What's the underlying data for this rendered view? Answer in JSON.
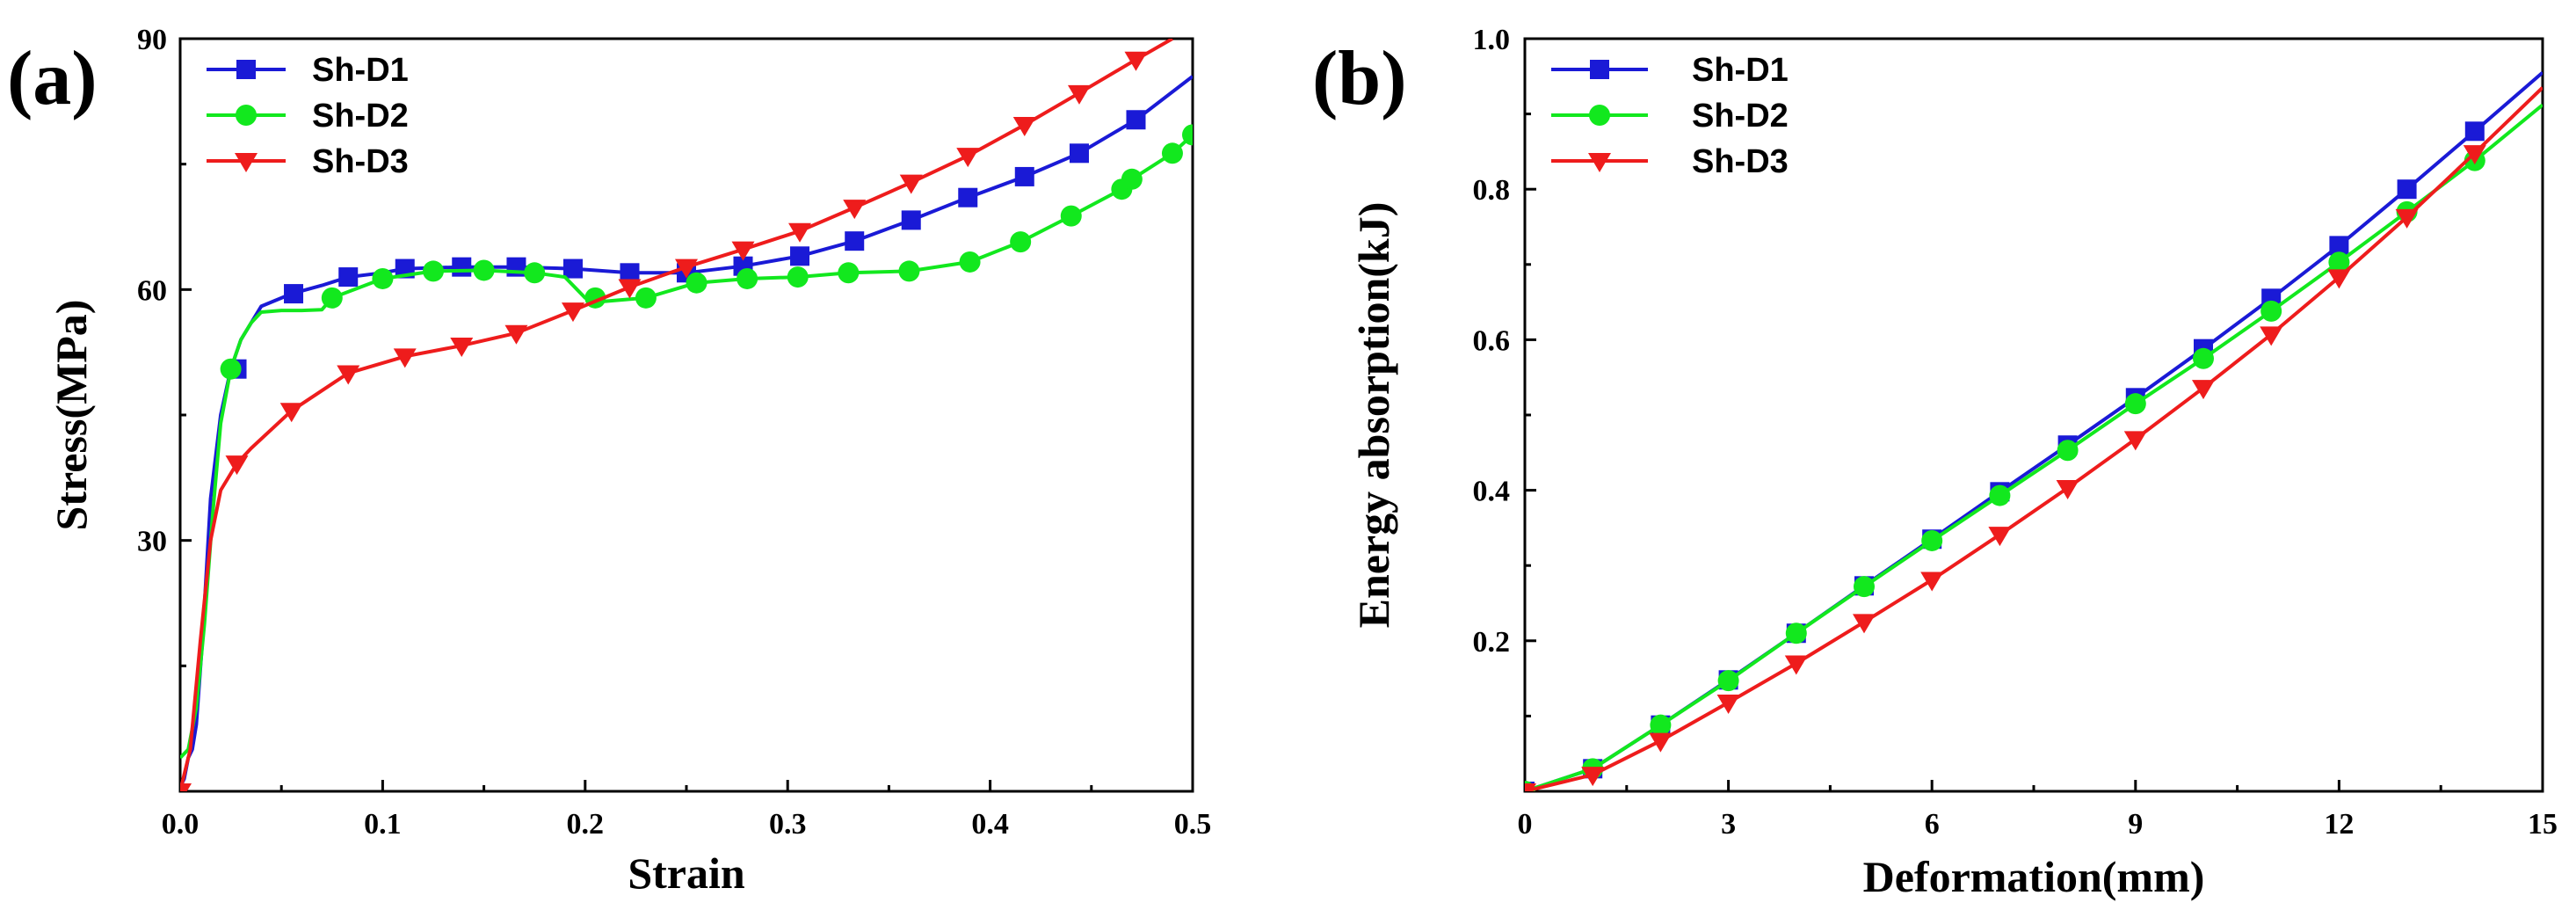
{
  "chart_data": [
    {
      "type": "line",
      "panel_label": "(a)",
      "xlabel": "Strain",
      "ylabel": "Stress(MPa)",
      "xlim": [
        0,
        0.5
      ],
      "ylim": [
        0,
        90
      ],
      "xticks": [
        0.0,
        0.1,
        0.2,
        0.3,
        0.4,
        0.5
      ],
      "xtick_labels": [
        "0.0",
        "0.1",
        "0.2",
        "0.3",
        "0.4",
        "0.5"
      ],
      "yticks": [
        30,
        60,
        90
      ],
      "ytick_labels": [
        "30",
        "60",
        "90"
      ],
      "legend_position": "top-left",
      "series": [
        {
          "name": "Sh-D1",
          "color": "#1a1ad6",
          "marker": "square",
          "x": [
            0.0,
            0.002,
            0.004,
            0.006,
            0.008,
            0.011,
            0.015,
            0.02,
            0.025,
            0.03,
            0.04,
            0.055,
            0.07,
            0.083,
            0.1,
            0.111,
            0.139,
            0.166,
            0.194,
            0.222,
            0.25,
            0.278,
            0.306,
            0.333,
            0.361,
            0.389,
            0.417,
            0.444,
            0.472,
            0.5
          ],
          "y": [
            0.5,
            1.5,
            4,
            5,
            8,
            18,
            35,
            45,
            50.5,
            54,
            58,
            59.5,
            60.5,
            61.5,
            62,
            62.5,
            62.7,
            62.7,
            62.5,
            62,
            62,
            62.8,
            64,
            65.8,
            68.3,
            71,
            73.5,
            76.3,
            80.3,
            85.5
          ],
          "markers_x": [
            0.028,
            0.056,
            0.083,
            0.111,
            0.139,
            0.166,
            0.194,
            0.222,
            0.25,
            0.278,
            0.306,
            0.333,
            0.361,
            0.389,
            0.417,
            0.444,
            0.472
          ],
          "markers_y": [
            50.5,
            59.5,
            61.5,
            62.5,
            62.7,
            62.7,
            62.5,
            62,
            62,
            62.8,
            64,
            65.8,
            68.3,
            71,
            73.5,
            76.3,
            80.3
          ]
        },
        {
          "name": "Sh-D2",
          "color": "#12e81e",
          "marker": "circle",
          "x": [
            0.0,
            0.004,
            0.008,
            0.012,
            0.016,
            0.02,
            0.025,
            0.03,
            0.035,
            0.04,
            0.05,
            0.06,
            0.07,
            0.075,
            0.1,
            0.125,
            0.15,
            0.175,
            0.19,
            0.2,
            0.205,
            0.23,
            0.255,
            0.28,
            0.305,
            0.33,
            0.36,
            0.39,
            0.415,
            0.44,
            0.465,
            0.47,
            0.49,
            0.5
          ],
          "y": [
            4,
            5,
            10,
            20,
            33,
            44,
            50.5,
            54,
            56,
            57.3,
            57.5,
            57.5,
            57.6,
            59,
            61.3,
            62.2,
            62.3,
            62,
            61.5,
            59,
            58.5,
            59,
            60.8,
            61.3,
            61.5,
            62,
            62.2,
            63.3,
            65.7,
            68.8,
            72,
            73.2,
            76.3,
            78.5
          ],
          "markers_x": [
            0.025,
            0.075,
            0.1,
            0.125,
            0.15,
            0.175,
            0.205,
            0.23,
            0.255,
            0.28,
            0.305,
            0.33,
            0.36,
            0.39,
            0.415,
            0.44,
            0.465,
            0.47,
            0.49,
            0.5
          ],
          "markers_y": [
            50.5,
            59,
            61.3,
            62.2,
            62.3,
            62,
            59,
            59,
            60.8,
            61.3,
            61.5,
            62,
            62.2,
            63.3,
            65.7,
            68.8,
            72,
            73.2,
            76.3,
            78.5
          ]
        },
        {
          "name": "Sh-D3",
          "color": "#ee1c1c",
          "marker": "triangle-down",
          "x": [
            0.0,
            0.005,
            0.01,
            0.015,
            0.02,
            0.028,
            0.035,
            0.055,
            0.083,
            0.111,
            0.139,
            0.166,
            0.194,
            0.222,
            0.25,
            0.278,
            0.306,
            0.333,
            0.361,
            0.389,
            0.417,
            0.444,
            0.472,
            0.49
          ],
          "y": [
            0,
            5,
            18,
            30,
            36,
            39.2,
            41,
            45.5,
            50,
            52,
            53.3,
            54.8,
            57.5,
            60.3,
            62.7,
            64.8,
            67,
            69.8,
            72.8,
            76,
            79.7,
            83.5,
            87.5,
            90
          ],
          "markers_x": [
            0.0,
            0.028,
            0.055,
            0.083,
            0.111,
            0.139,
            0.166,
            0.194,
            0.222,
            0.25,
            0.278,
            0.306,
            0.333,
            0.361,
            0.389,
            0.417,
            0.444,
            0.472
          ],
          "markers_y": [
            0,
            39.2,
            45.5,
            50,
            52,
            53.3,
            54.8,
            57.5,
            60.3,
            62.7,
            64.8,
            67,
            69.8,
            72.8,
            76,
            79.7,
            83.5,
            87.5
          ]
        }
      ]
    },
    {
      "type": "line",
      "panel_label": "(b)",
      "xlabel": "Deformation(mm)",
      "ylabel": "Energy absorption(kJ)",
      "xlim": [
        0,
        15
      ],
      "ylim": [
        0,
        1.0
      ],
      "xticks": [
        0,
        3,
        6,
        9,
        12,
        15
      ],
      "xtick_labels": [
        "0",
        "3",
        "6",
        "9",
        "12",
        "15"
      ],
      "yticks": [
        0.2,
        0.4,
        0.6,
        0.8,
        1.0
      ],
      "ytick_labels": [
        "0.2",
        "0.4",
        "0.6",
        "0.8",
        "1.0"
      ],
      "legend_position": "top-left",
      "series": [
        {
          "name": "Sh-D1",
          "color": "#1a1ad6",
          "marker": "square",
          "x": [
            0,
            1,
            2,
            3,
            4,
            5,
            6,
            7,
            8,
            9,
            10,
            11,
            12,
            13,
            14,
            15
          ],
          "y": [
            0,
            0.03,
            0.088,
            0.148,
            0.21,
            0.273,
            0.335,
            0.398,
            0.46,
            0.523,
            0.588,
            0.655,
            0.725,
            0.8,
            0.877,
            0.955
          ],
          "markers_x": [
            0,
            1,
            2,
            3,
            4,
            5,
            6,
            7,
            8,
            9,
            10,
            11,
            12,
            13,
            14
          ],
          "markers_y": [
            0,
            0.03,
            0.088,
            0.148,
            0.21,
            0.273,
            0.335,
            0.398,
            0.46,
            0.523,
            0.588,
            0.655,
            0.725,
            0.8,
            0.877
          ]
        },
        {
          "name": "Sh-D2",
          "color": "#12e81e",
          "marker": "circle",
          "x": [
            0,
            1,
            2,
            3,
            4,
            5,
            6,
            7,
            8,
            9,
            10,
            11,
            12,
            13,
            14,
            15
          ],
          "y": [
            0,
            0.03,
            0.088,
            0.147,
            0.21,
            0.272,
            0.333,
            0.393,
            0.453,
            0.515,
            0.575,
            0.638,
            0.703,
            0.77,
            0.838,
            0.912
          ],
          "markers_x": [
            0,
            1,
            2,
            3,
            4,
            5,
            6,
            7,
            8,
            9,
            10,
            11,
            12,
            13,
            14
          ],
          "markers_y": [
            0,
            0.03,
            0.088,
            0.147,
            0.21,
            0.272,
            0.333,
            0.393,
            0.453,
            0.515,
            0.575,
            0.638,
            0.703,
            0.77,
            0.838
          ]
        },
        {
          "name": "Sh-D3",
          "color": "#ee1c1c",
          "marker": "triangle-down",
          "x": [
            0,
            1,
            2,
            3,
            4,
            5,
            6,
            7,
            8,
            9,
            10,
            11,
            12,
            13,
            14,
            15
          ],
          "y": [
            0,
            0.022,
            0.067,
            0.118,
            0.17,
            0.225,
            0.281,
            0.341,
            0.403,
            0.468,
            0.536,
            0.607,
            0.683,
            0.763,
            0.848,
            0.935
          ],
          "markers_x": [
            0,
            1,
            2,
            3,
            4,
            5,
            6,
            7,
            8,
            9,
            10,
            11,
            12,
            13,
            14
          ],
          "markers_y": [
            0,
            0.022,
            0.067,
            0.118,
            0.17,
            0.225,
            0.281,
            0.341,
            0.403,
            0.468,
            0.536,
            0.607,
            0.683,
            0.763,
            0.848
          ]
        }
      ]
    }
  ]
}
